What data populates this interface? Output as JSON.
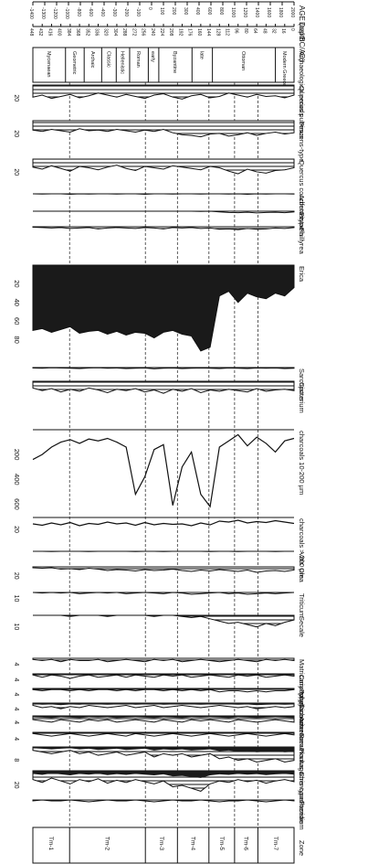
{
  "chart_data": {
    "type": "area",
    "orientation": "rotated-90-clockwise",
    "title": "",
    "depth_axis": {
      "label": "Depth",
      "range": [
        0,
        448
      ],
      "ticks": [
        448,
        432,
        416,
        400,
        384,
        368,
        352,
        336,
        320,
        304,
        288,
        272,
        256,
        240,
        224,
        208,
        192,
        176,
        160,
        144,
        128,
        112,
        96,
        80,
        64,
        48,
        32,
        16,
        0
      ]
    },
    "age_axis": {
      "label": "AGE (cal BC/AD)",
      "ticks": [
        "-1400",
        "-1300",
        "-1200",
        "-1000",
        "-800",
        "-600",
        "-400",
        "-300",
        "-200",
        "-100",
        "0",
        "100",
        "200",
        "300",
        "400",
        "600",
        "800",
        "1000",
        "1200",
        "1400",
        "1600",
        "1800",
        "2000"
      ]
    },
    "archaeological_periods": {
      "label": "Archaeological periods",
      "items": [
        {
          "name": "Mycenaean",
          "from": 448,
          "to": 392
        },
        {
          "name": "Geometric",
          "from": 392,
          "to": 360
        },
        {
          "name": "Archaic",
          "from": 360,
          "to": 330
        },
        {
          "name": "Classic",
          "from": 330,
          "to": 305
        },
        {
          "name": "Hellenistic",
          "from": 305,
          "to": 282
        },
        {
          "name": "Roman",
          "from": 282,
          "to": 250
        },
        {
          "name": "early",
          "from": 250,
          "to": 232
        },
        {
          "name": "Byzantine",
          "from": 232,
          "to": 175
        },
        {
          "name": "late",
          "from": 175,
          "to": 140
        },
        {
          "name": "Ottoman",
          "from": 140,
          "to": 32
        },
        {
          "name": "Modern Greece",
          "from": 32,
          "to": 0
        }
      ]
    },
    "zones": {
      "label": "Zone",
      "items": [
        {
          "name": "Tm-1",
          "from": 448,
          "to": 385
        },
        {
          "name": "Tm-2",
          "from": 385,
          "to": 255
        },
        {
          "name": "Tm-3",
          "from": 255,
          "to": 200
        },
        {
          "name": "Tm-4",
          "from": 200,
          "to": 146
        },
        {
          "name": "Tm-5",
          "from": 146,
          "to": 102
        },
        {
          "name": "Tm-6",
          "from": 102,
          "to": 62
        },
        {
          "name": "Tm-7",
          "from": 62,
          "to": 0
        }
      ]
    },
    "depth": [
      448,
      432,
      416,
      400,
      384,
      368,
      352,
      336,
      320,
      304,
      288,
      272,
      256,
      240,
      224,
      208,
      192,
      176,
      160,
      144,
      128,
      112,
      96,
      80,
      64,
      48,
      32,
      16,
      0
    ],
    "series": [
      {
        "name": "Quercus pubescens-type",
        "fill": "hatch",
        "scale_max": 30,
        "tick": "20",
        "values": [
          18,
          15,
          20,
          17,
          14,
          19,
          16,
          12,
          15,
          18,
          14,
          17,
          20,
          15,
          13,
          18,
          21,
          16,
          14,
          19,
          17,
          12,
          15,
          18,
          14,
          17,
          16,
          19,
          15
        ]
      },
      {
        "name": "Pinus",
        "fill": "hatch",
        "scale_max": 30,
        "tick": "20",
        "values": [
          14,
          16,
          13,
          15,
          17,
          12,
          15,
          14,
          16,
          13,
          15,
          17,
          14,
          16,
          13,
          18,
          21,
          22,
          24,
          20,
          19,
          23,
          21,
          18,
          22,
          19,
          17,
          20,
          18
        ]
      },
      {
        "name": "Quercus coccifera-type",
        "fill": "hatch",
        "scale_max": 30,
        "tick": "20",
        "values": [
          12,
          15,
          10,
          14,
          18,
          11,
          13,
          16,
          12,
          9,
          14,
          17,
          11,
          13,
          15,
          10,
          12,
          14,
          16,
          11,
          13,
          18,
          22,
          15,
          19,
          21,
          17,
          16,
          13
        ]
      },
      {
        "name": "Arbutus",
        "fill": "hatch",
        "scale_max": 30,
        "values": [
          0,
          1,
          0,
          0,
          2,
          0,
          1,
          0,
          0,
          1,
          0,
          0,
          2,
          0,
          0,
          1,
          0,
          0,
          1,
          0,
          0,
          1,
          0,
          2,
          0,
          1,
          0,
          0,
          1
        ]
      },
      {
        "name": "Pistacia",
        "fill": "hatch",
        "scale_max": 30,
        "values": [
          0,
          0,
          0,
          0,
          0,
          0,
          0,
          0,
          0,
          0,
          0,
          0,
          0,
          0,
          0,
          0,
          0,
          0,
          1,
          0,
          3,
          5,
          6,
          4,
          7,
          5,
          4,
          6,
          3
        ]
      },
      {
        "name": "Phillyrea",
        "fill": "hatch",
        "scale_max": 30,
        "values": [
          1,
          2,
          3,
          2,
          4,
          3,
          2,
          5,
          3,
          2,
          3,
          4,
          2,
          3,
          5,
          2,
          3,
          2,
          4,
          3,
          6,
          5,
          7,
          4,
          6,
          5,
          3,
          4,
          2
        ]
      },
      {
        "name": "Erica",
        "fill": "solid",
        "scale_max": 100,
        "ticks": [
          "20",
          "40",
          "60",
          "80"
        ],
        "values": [
          70,
          68,
          72,
          69,
          66,
          73,
          71,
          70,
          74,
          71,
          75,
          72,
          73,
          78,
          72,
          70,
          74,
          76,
          92,
          88,
          33,
          28,
          40,
          30,
          34,
          36,
          30,
          33,
          24
        ]
      },
      {
        "name": "Sarcopoterium",
        "fill": "hatch",
        "scale_max": 30,
        "values": [
          2,
          3,
          1,
          2,
          3,
          4,
          2,
          1,
          3,
          2,
          4,
          3,
          2,
          5,
          3,
          2,
          4,
          3,
          2,
          3,
          4,
          2,
          3,
          4,
          2,
          3,
          2,
          4,
          3
        ]
      },
      {
        "name": "Cistus",
        "fill": "hatch",
        "scale_max": 30,
        "values": [
          10,
          14,
          11,
          16,
          12,
          15,
          10,
          13,
          17,
          12,
          14,
          11,
          16,
          13,
          18,
          12,
          15,
          11,
          17,
          13,
          15,
          12,
          14,
          16,
          11,
          15,
          13,
          12,
          14
        ]
      },
      {
        "name": "charcoals 10-200 µm",
        "fill": "line",
        "scale_max": 700,
        "ticks": [
          "200",
          "400",
          "600"
        ],
        "values": [
          240,
          200,
          140,
          100,
          80,
          110,
          75,
          90,
          70,
          100,
          140,
          520,
          380,
          160,
          120,
          610,
          300,
          180,
          520,
          620,
          140,
          90,
          40,
          130,
          60,
          110,
          180,
          90,
          70
        ]
      },
      {
        "name": "charcoals > 200 µm",
        "fill": "line",
        "scale_max": 40,
        "tick": "20",
        "values": [
          14,
          17,
          12,
          16,
          11,
          18,
          13,
          15,
          10,
          14,
          12,
          17,
          11,
          16,
          13,
          15,
          14,
          18,
          12,
          16,
          8,
          10,
          6,
          12,
          9,
          11,
          7,
          10,
          13
        ]
      },
      {
        "name": "Vitis",
        "fill": "hatch",
        "scale_max": 30,
        "values": [
          0,
          0,
          1,
          0,
          0,
          0,
          1,
          0,
          0,
          0,
          0,
          1,
          0,
          0,
          1,
          0,
          0,
          0,
          0,
          1,
          0,
          0,
          1,
          0,
          0,
          0,
          1,
          0,
          0
        ]
      },
      {
        "name": "Olea",
        "fill": "hatch",
        "scale_max": 30,
        "tick": "20",
        "values": [
          2,
          3,
          2,
          5,
          4,
          6,
          3,
          5,
          8,
          6,
          7,
          9,
          6,
          8,
          7,
          5,
          8,
          10,
          7,
          9,
          6,
          8,
          10,
          7,
          12,
          9,
          8,
          10,
          7
        ]
      },
      {
        "name": "Triticum",
        "fill": "hatch",
        "scale_max": 15,
        "tick": "10",
        "values": [
          0,
          1,
          0,
          1,
          0,
          2,
          1,
          0,
          1,
          0,
          2,
          1,
          0,
          1,
          2,
          0,
          1,
          3,
          2,
          1,
          0,
          2,
          1,
          3,
          2,
          1,
          2,
          1,
          0
        ]
      },
      {
        "name": "Secale",
        "fill": "hatch",
        "scale_max": 15,
        "tick": "10",
        "values": [
          0,
          0,
          0,
          0,
          1,
          0,
          0,
          0,
          1,
          0,
          0,
          0,
          0,
          1,
          0,
          0,
          1,
          2,
          1,
          3,
          5,
          7,
          6,
          8,
          10,
          7,
          9,
          6,
          4
        ]
      },
      {
        "name": "Matricaria-type",
        "fill": "hatch",
        "scale_max": 8,
        "tick": "4",
        "values": [
          1,
          2,
          1,
          3,
          1,
          2,
          2,
          1,
          3,
          2,
          1,
          2,
          3,
          1,
          2,
          1,
          3,
          2,
          1,
          2,
          3,
          2,
          1,
          2,
          3,
          1,
          2,
          1,
          2
        ]
      },
      {
        "name": "Caryophyllaceae",
        "fill": "hatch",
        "scale_max": 8,
        "tick": "4",
        "values": [
          1,
          3,
          1,
          2,
          4,
          2,
          1,
          3,
          2,
          1,
          3,
          1,
          2,
          3,
          1,
          2,
          1,
          3,
          2,
          1,
          2,
          3,
          1,
          2,
          1,
          3,
          2,
          1,
          2
        ]
      },
      {
        "name": "Polygonaceae",
        "fill": "hatch",
        "scale_max": 8,
        "tick": "4",
        "values": [
          1,
          2,
          1,
          1,
          2,
          1,
          2,
          1,
          1,
          2,
          1,
          2,
          1,
          1,
          2,
          1,
          2,
          1,
          2,
          1,
          3,
          2,
          2,
          3,
          2,
          3,
          2,
          2,
          1
        ]
      },
      {
        "name": "Cichoriaceae",
        "fill": "mixed",
        "scale_max": 8,
        "tick": "4",
        "values": [
          2,
          4,
          3,
          5,
          3,
          4,
          2,
          3,
          4,
          3,
          2,
          4,
          3,
          2,
          4,
          3,
          2,
          3,
          4,
          3,
          2,
          3,
          4,
          3,
          5,
          4,
          3,
          4,
          3
        ]
      },
      {
        "name": "Asteraceae",
        "fill": "mixed",
        "scale_max": 8,
        "tick": "4",
        "values": [
          3,
          4,
          5,
          3,
          4,
          5,
          3,
          4,
          3,
          5,
          4,
          3,
          4,
          5,
          3,
          4,
          5,
          3,
          4,
          3,
          4,
          5,
          3,
          4,
          5,
          4,
          3,
          4,
          5
        ]
      },
      {
        "name": "Ranunculus acris-type",
        "fill": "hatch",
        "scale_max": 8,
        "tick": "4",
        "values": [
          1,
          2,
          3,
          2,
          1,
          2,
          3,
          2,
          1,
          2,
          3,
          1,
          2,
          3,
          2,
          1,
          2,
          3,
          2,
          1,
          2,
          3,
          2,
          1,
          2,
          3,
          2,
          1,
          2
        ]
      },
      {
        "name": "Plantago",
        "fill": "mixed",
        "scale_max": 12,
        "tick": "8",
        "values": [
          2,
          3,
          4,
          3,
          2,
          4,
          3,
          5,
          4,
          3,
          5,
          4,
          3,
          6,
          4,
          5,
          4,
          6,
          5,
          4,
          7,
          6,
          8,
          7,
          9,
          8,
          7,
          9,
          8
        ]
      },
      {
        "name": "Chenopodiaceae",
        "fill": "mixed",
        "scale_max": 30,
        "tick": "20",
        "values": [
          12,
          16,
          10,
          14,
          18,
          12,
          15,
          11,
          17,
          13,
          16,
          12,
          15,
          18,
          14,
          22,
          20,
          24,
          28,
          18,
          14,
          16,
          12,
          15,
          13,
          17,
          14,
          12,
          15
        ]
      },
      {
        "name": "Pteridium",
        "fill": "hatch",
        "scale_max": 8,
        "values": [
          1,
          0,
          1,
          1,
          0,
          1,
          2,
          1,
          0,
          1,
          1,
          0,
          1,
          2,
          1,
          0,
          1,
          1,
          0,
          1,
          2,
          1,
          1,
          0,
          1,
          2,
          1,
          0,
          1
        ]
      }
    ]
  }
}
